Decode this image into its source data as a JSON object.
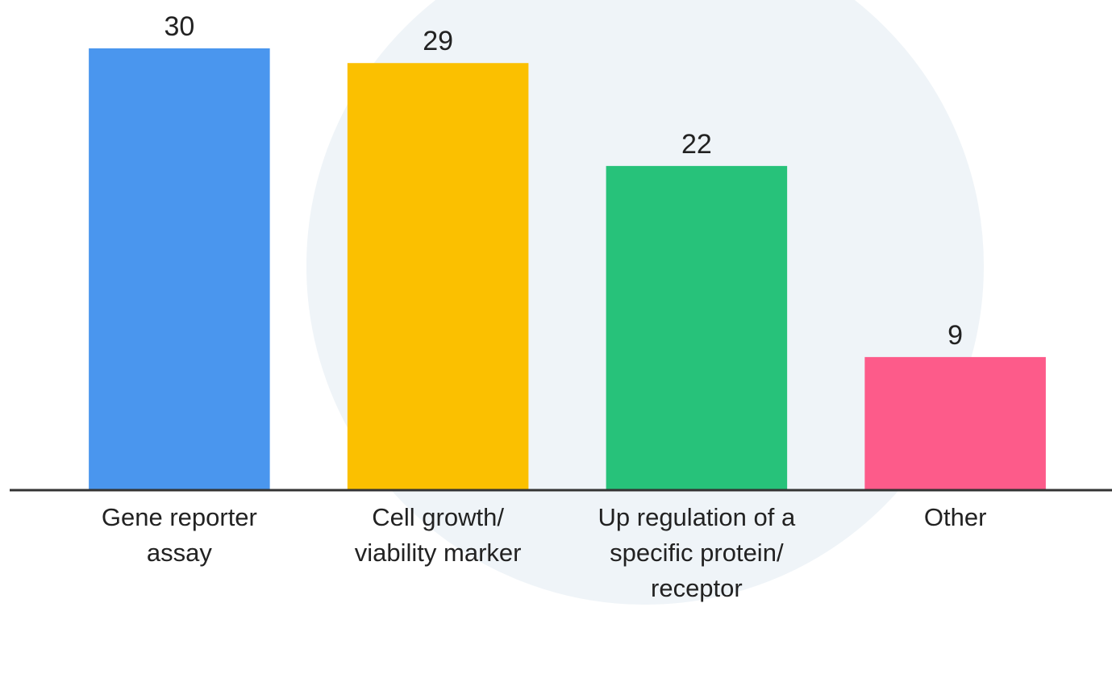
{
  "chart_data": {
    "type": "bar",
    "categories": [
      "Gene reporter assay",
      "Cell growth/ viability marker",
      "Up regulation of a specific protein/ receptor",
      "Other"
    ],
    "values": [
      30,
      29,
      22,
      9
    ],
    "colors": [
      "#4a96ee",
      "#fbc000",
      "#27c27a",
      "#fd5b8a"
    ],
    "ylim": [
      0,
      30
    ]
  }
}
